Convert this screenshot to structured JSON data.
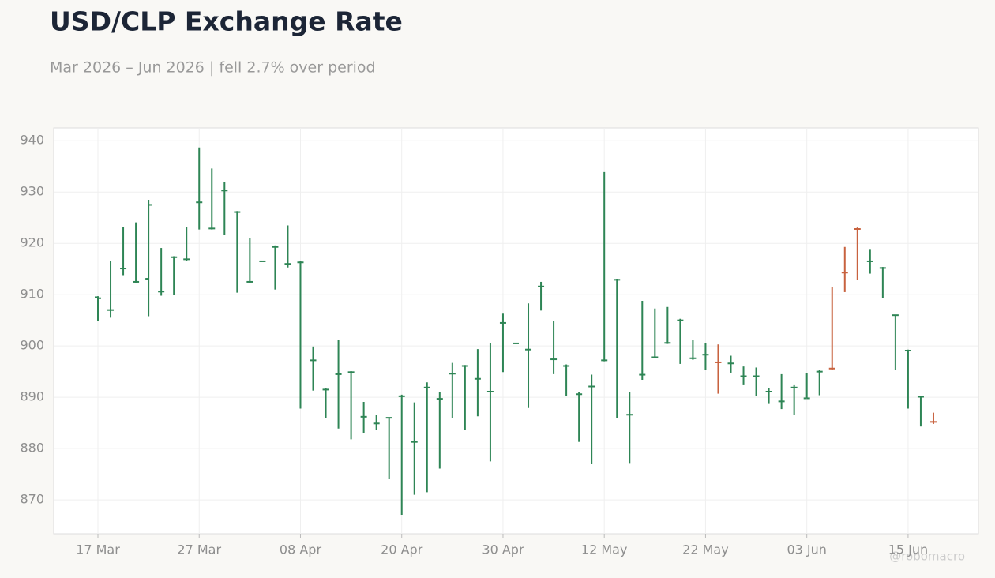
{
  "chart_data": {
    "type": "ohlc",
    "title": "USD/CLP Exchange Rate",
    "subtitle": "Mar 2026 – Jun 2026 | fell 2.7% over period",
    "watermark": "@robomacro",
    "categories": [
      "17 Mar",
      null,
      null,
      null,
      null,
      null,
      null,
      null,
      "27 Mar",
      null,
      null,
      null,
      null,
      null,
      null,
      null,
      "08 Apr",
      null,
      null,
      null,
      null,
      null,
      null,
      null,
      "20 Apr",
      null,
      null,
      null,
      null,
      null,
      null,
      null,
      "30 Apr",
      null,
      null,
      null,
      null,
      null,
      null,
      null,
      "12 May",
      null,
      null,
      null,
      null,
      null,
      null,
      null,
      "22 May",
      null,
      null,
      null,
      null,
      null,
      null,
      null,
      "03 Jun",
      null,
      null,
      null,
      null,
      null,
      null,
      null,
      "15 Jun",
      null,
      null
    ],
    "open": [
      909.5,
      907,
      915.1,
      912.5,
      913.1,
      910.6,
      917.3,
      916.9,
      928,
      922.9,
      930.3,
      926.1,
      912.5,
      916.5,
      919.3,
      916,
      916.3,
      897.2,
      891.5,
      894.5,
      894.9,
      886.2,
      884.9,
      886,
      890.2,
      881.3,
      891.9,
      889.7,
      894.6,
      896.1,
      893.6,
      891.1,
      904.5,
      900.5,
      899.3,
      911.6,
      897.4,
      896.1,
      890.6,
      892.1,
      897.2,
      912.9,
      886.6,
      894.4,
      897.8,
      900.6,
      905,
      897.6,
      898.3,
      896.8,
      896.6,
      894.1,
      894.1,
      891.1,
      889.2,
      891.9,
      889.8,
      895,
      895.6,
      914.3,
      922.8,
      916.5,
      915.2,
      906,
      899.1,
      890.1,
      885.2
    ],
    "high": [
      909.7,
      916.5,
      923.2,
      924.1,
      928.5,
      919.1,
      917.5,
      923.2,
      938.7,
      934.6,
      932,
      926.3,
      921,
      916.6,
      919.6,
      923.5,
      916.6,
      899.9,
      891.8,
      901.1,
      895.1,
      889.1,
      886.5,
      886.1,
      890.5,
      889,
      892.9,
      891,
      896.7,
      896.3,
      899.4,
      900.6,
      906.3,
      900.5,
      908.3,
      912.5,
      904.9,
      896.4,
      891,
      894.4,
      933.9,
      913.1,
      891,
      908.8,
      907.3,
      907.6,
      905.3,
      901.1,
      900.6,
      900.3,
      898.1,
      896,
      895.8,
      891.8,
      894.5,
      892.5,
      894.7,
      895.3,
      911.5,
      919.3,
      923.1,
      918.9,
      915.4,
      906.1,
      899.3,
      890.3,
      887
    ],
    "low": [
      904.8,
      905.5,
      913.8,
      912.3,
      905.8,
      909.8,
      909.9,
      916.6,
      922.7,
      922.7,
      921.6,
      910.4,
      912.3,
      916.4,
      911,
      915.3,
      887.8,
      891.3,
      885.9,
      883.9,
      881.8,
      883,
      883.7,
      874.1,
      867.1,
      871,
      871.5,
      876.1,
      885.9,
      883.7,
      886.3,
      877.5,
      894.9,
      900.4,
      887.9,
      906.9,
      894.5,
      890.2,
      881.3,
      877,
      897,
      885.9,
      877.2,
      893.4,
      897.7,
      900.4,
      896.5,
      897.3,
      895.4,
      890.7,
      894.8,
      892.5,
      890.3,
      888.7,
      887.7,
      886.5,
      889.9,
      890.4,
      895.3,
      910.5,
      912.9,
      914.1,
      909.4,
      895.4,
      887.8,
      884.3,
      884.8
    ],
    "close": [
      909.3,
      907,
      915.1,
      912.5,
      927.5,
      910.6,
      917.3,
      916.9,
      928,
      922.9,
      930.3,
      926.1,
      912.5,
      916.5,
      919.3,
      916,
      916.3,
      897.2,
      891.5,
      894.5,
      894.9,
      886.2,
      884.9,
      886,
      890.2,
      881.3,
      891.9,
      889.7,
      894.6,
      896.1,
      893.6,
      891.1,
      904.5,
      900.5,
      899.3,
      911.6,
      897.4,
      896.1,
      890.6,
      892.1,
      897.2,
      912.9,
      886.6,
      894.4,
      897.8,
      900.6,
      905,
      897.6,
      898.3,
      896.8,
      896.6,
      894.1,
      894.1,
      891.1,
      889.2,
      891.9,
      889.8,
      895,
      895.6,
      914.3,
      922.8,
      916.5,
      915.2,
      906,
      899.1,
      890.1,
      885.2
    ],
    "colors": [
      "#2e8555",
      "#2e8555",
      "#2e8555",
      "#2e8555",
      "#2e8555",
      "#2e8555",
      "#2e8555",
      "#2e8555",
      "#2e8555",
      "#2e8555",
      "#2e8555",
      "#2e8555",
      "#2e8555",
      "#2e8555",
      "#2e8555",
      "#2e8555",
      "#2e8555",
      "#2e8555",
      "#2e8555",
      "#2e8555",
      "#2e8555",
      "#2e8555",
      "#2e8555",
      "#2e8555",
      "#2e8555",
      "#2e8555",
      "#2e8555",
      "#2e8555",
      "#2e8555",
      "#2e8555",
      "#2e8555",
      "#2e8555",
      "#2e8555",
      "#2e8555",
      "#2e8555",
      "#2e8555",
      "#2e8555",
      "#2e8555",
      "#2e8555",
      "#2e8555",
      "#2e8555",
      "#2e8555",
      "#2e8555",
      "#2e8555",
      "#2e8555",
      "#2e8555",
      "#2e8555",
      "#2e8555",
      "#2e8555",
      "#c8623f",
      "#2e8555",
      "#2e8555",
      "#2e8555",
      "#2e8555",
      "#2e8555",
      "#2e8555",
      "#2e8555",
      "#2e8555",
      "#c8623f",
      "#c8623f",
      "#c8623f",
      "#2e8555",
      "#2e8555",
      "#2e8555",
      "#2e8555",
      "#2e8555",
      "#c8623f"
    ],
    "ylim": [
      863.4,
      942.5
    ],
    "yticks": [
      870,
      880,
      890,
      900,
      910,
      920,
      930,
      940
    ],
    "grid": true
  }
}
